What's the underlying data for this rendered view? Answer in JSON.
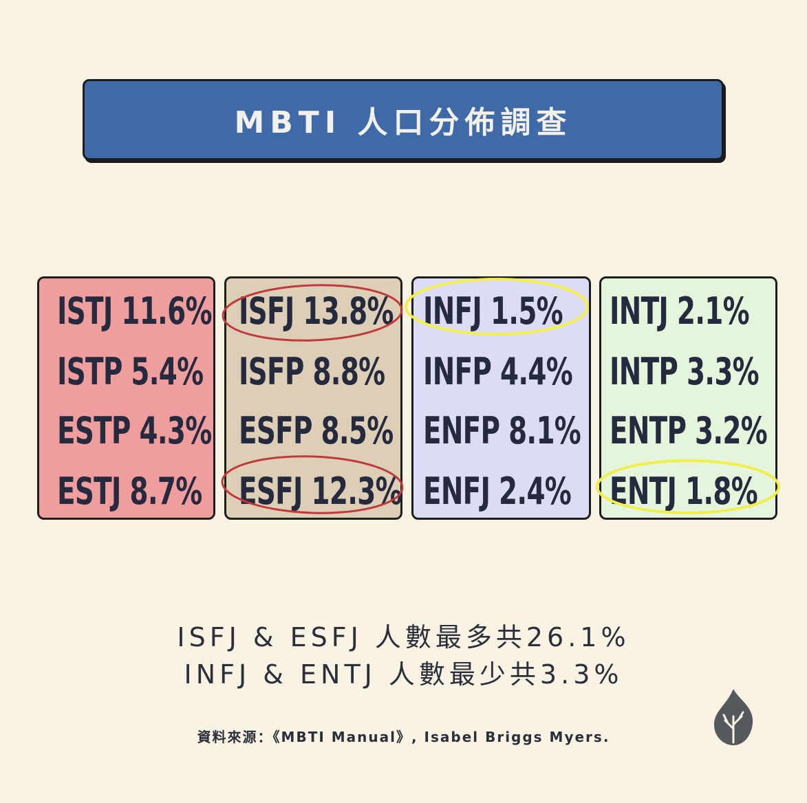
{
  "header": {
    "title": "MBTI 人口分佈調查"
  },
  "columns": [
    {
      "color": "#ef9d9d",
      "items": [
        {
          "label": "ISTJ 11.6%"
        },
        {
          "label": "ISTP 5.4%"
        },
        {
          "label": "ESTP 4.3%"
        },
        {
          "label": "ESTJ 8.7%"
        }
      ]
    },
    {
      "color": "#dccfb5",
      "items": [
        {
          "label": "ISFJ 13.8%",
          "highlight": "red"
        },
        {
          "label": "ISFP 8.8%"
        },
        {
          "label": "ESFP 8.5%"
        },
        {
          "label": "ESFJ 12.3%",
          "highlight": "red"
        }
      ]
    },
    {
      "color": "#dcdcf7",
      "items": [
        {
          "label": "INFJ 1.5%",
          "highlight": "yellow"
        },
        {
          "label": "INFP 4.4%"
        },
        {
          "label": "ENFP 8.1%"
        },
        {
          "label": "ENFJ 2.4%"
        }
      ]
    },
    {
      "color": "#e4f5dc",
      "items": [
        {
          "label": "INTJ 2.1%"
        },
        {
          "label": "INTP 3.3%"
        },
        {
          "label": "ENTP 3.2%"
        },
        {
          "label": "ENTJ 1.8%",
          "highlight": "yellow"
        }
      ]
    }
  ],
  "summary": {
    "line1": "ISFJ & ESFJ 人數最多共26.1%",
    "line2": "INFJ & ENTJ 人數最少共3.3%"
  },
  "source": "資料來源：《MBTI Manual》, Isabel Briggs Myers.",
  "colors": {
    "background": "#f9f3e3",
    "title_bar": "#3e6aa8",
    "highlight_red": "#c0393f",
    "highlight_yellow": "#f2ef4a"
  },
  "icons": {
    "logo": "flame-tree-icon"
  }
}
